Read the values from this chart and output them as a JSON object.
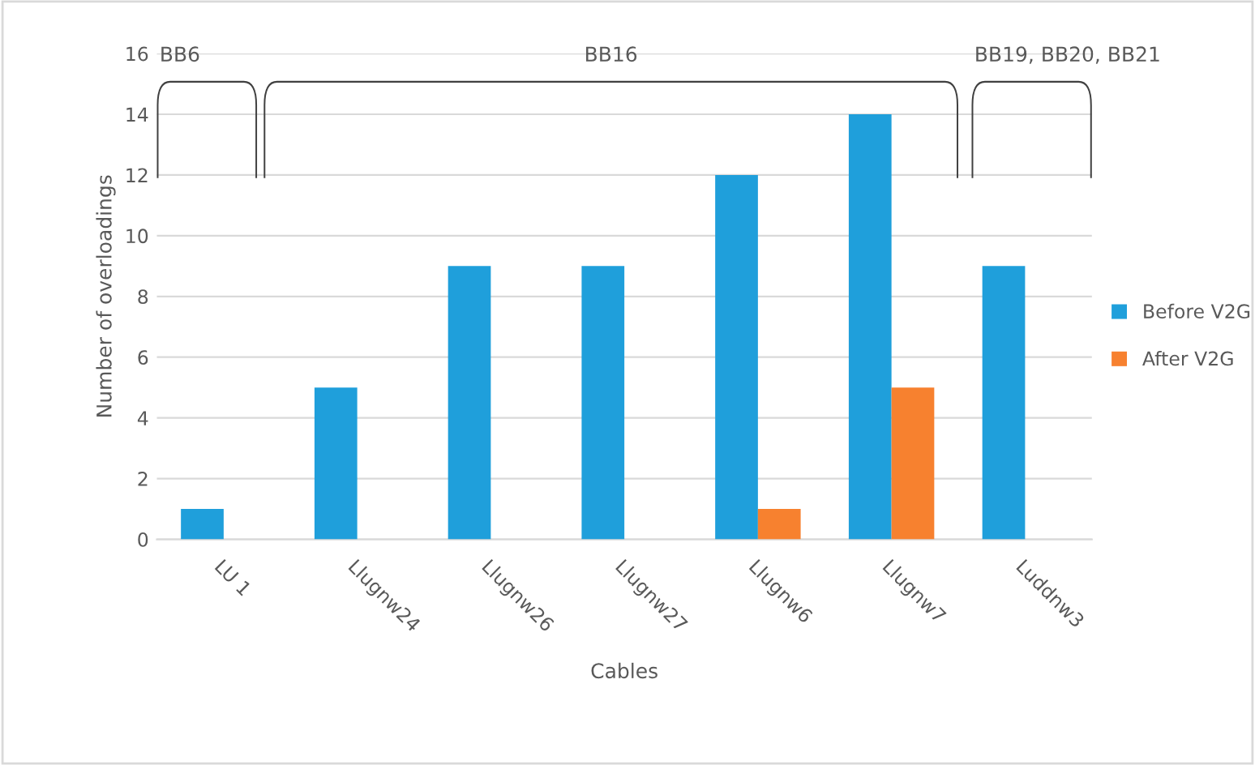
{
  "chart_data": {
    "type": "bar",
    "xlabel": "Cables",
    "ylabel": "Number of overloadings",
    "categories": [
      "LU 1",
      "Llugnw24",
      "Llugnw26",
      "Llugnw27",
      "Llugnw6",
      "Llugnw7",
      "Luddnw3"
    ],
    "series": [
      {
        "name": "Before V2G",
        "color": "#1f9fdb",
        "values": [
          1,
          5,
          9,
          9,
          12,
          14,
          9
        ]
      },
      {
        "name": "After V2G",
        "color": "#f7812f",
        "values": [
          0,
          0,
          0,
          0,
          1,
          5,
          0
        ]
      }
    ],
    "ylim": [
      0,
      16
    ],
    "yticks": [
      0,
      2,
      4,
      6,
      8,
      10,
      12,
      14,
      16
    ],
    "grid": "y",
    "legend": "right",
    "annotations": [
      "BB6",
      "BB16",
      "BB19, BB20, BB21"
    ]
  }
}
